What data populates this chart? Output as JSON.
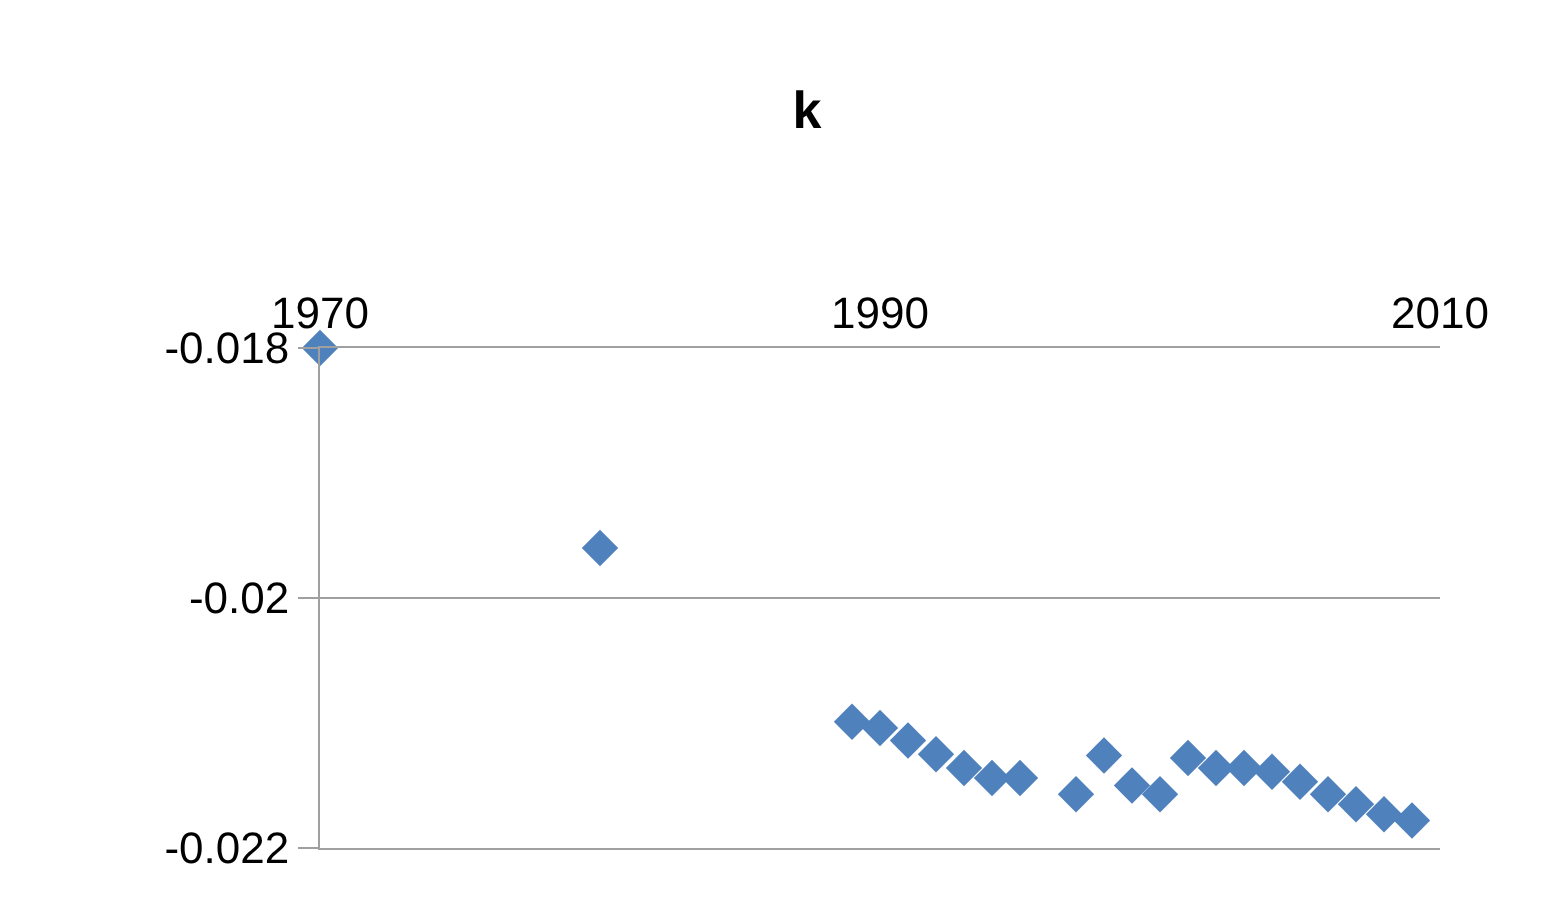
{
  "chart_data": {
    "type": "scatter",
    "title": "k",
    "x": [
      1970,
      1980,
      1989,
      1990,
      1991,
      1992,
      1993,
      1994,
      1995,
      1997,
      1998,
      1999,
      2000,
      2001,
      2002,
      2003,
      2004,
      2005,
      2006,
      2007,
      2008,
      2009
    ],
    "series": [
      {
        "color": "#4f81bd",
        "values": [
          -0.018,
          -0.0196,
          -0.02099,
          -0.02104,
          -0.02114,
          -0.02125,
          -0.02136,
          -0.02144,
          -0.02144,
          -0.02157,
          -0.02126,
          -0.0215,
          -0.02157,
          -0.02128,
          -0.02136,
          -0.02136,
          -0.02139,
          -0.02147,
          -0.02157,
          -0.02165,
          -0.02173,
          -0.02178
        ]
      }
    ],
    "xlim": [
      1970,
      2010
    ],
    "xticks": [
      1970,
      1990,
      2010
    ],
    "ylim": [
      -0.022,
      -0.018
    ],
    "yticks": [
      -0.018,
      -0.02,
      -0.022
    ],
    "grid": "y",
    "marker": "diamond"
  }
}
